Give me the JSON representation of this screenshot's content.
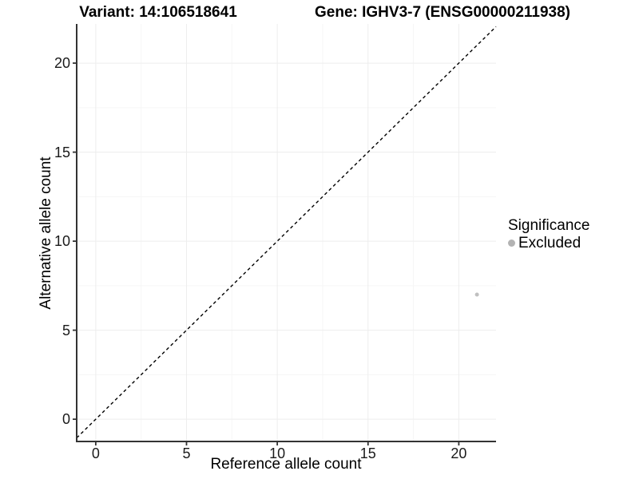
{
  "header": {
    "title_left": "Variant: 14:106518641",
    "title_right": "Gene: IGHV3-7 (ENSG00000211938)"
  },
  "chart_data": {
    "type": "scatter",
    "xlabel": "Reference allele count",
    "ylabel": "Alternative allele count",
    "xlim": [
      -1.05,
      22.05
    ],
    "ylim": [
      -1.25,
      22.2
    ],
    "x_ticks": [
      0,
      5,
      10,
      15,
      20
    ],
    "y_ticks": [
      0,
      5,
      10,
      15,
      20
    ],
    "x_minor_ticks": [
      2.5,
      7.5,
      12.5,
      17.5
    ],
    "y_minor_ticks": [
      2.5,
      7.5,
      12.5,
      17.5
    ],
    "grid": "major+minor",
    "reference_line": {
      "kind": "identity y=x",
      "style": "dashed",
      "color": "#000000"
    },
    "series": [
      {
        "name": "Excluded",
        "color": "#c0c0c0",
        "points": [
          {
            "x": 21,
            "y": 7
          }
        ]
      }
    ],
    "legend": {
      "title": "Significance",
      "position": "right",
      "entries": [
        {
          "label": "Excluded",
          "color": "#b3b3b3"
        }
      ]
    }
  },
  "colors": {
    "background": "#ffffff",
    "axis_line": "#333333",
    "grid_major": "#ededed",
    "grid_minor": "#f6f6f6",
    "text": "#000000"
  }
}
